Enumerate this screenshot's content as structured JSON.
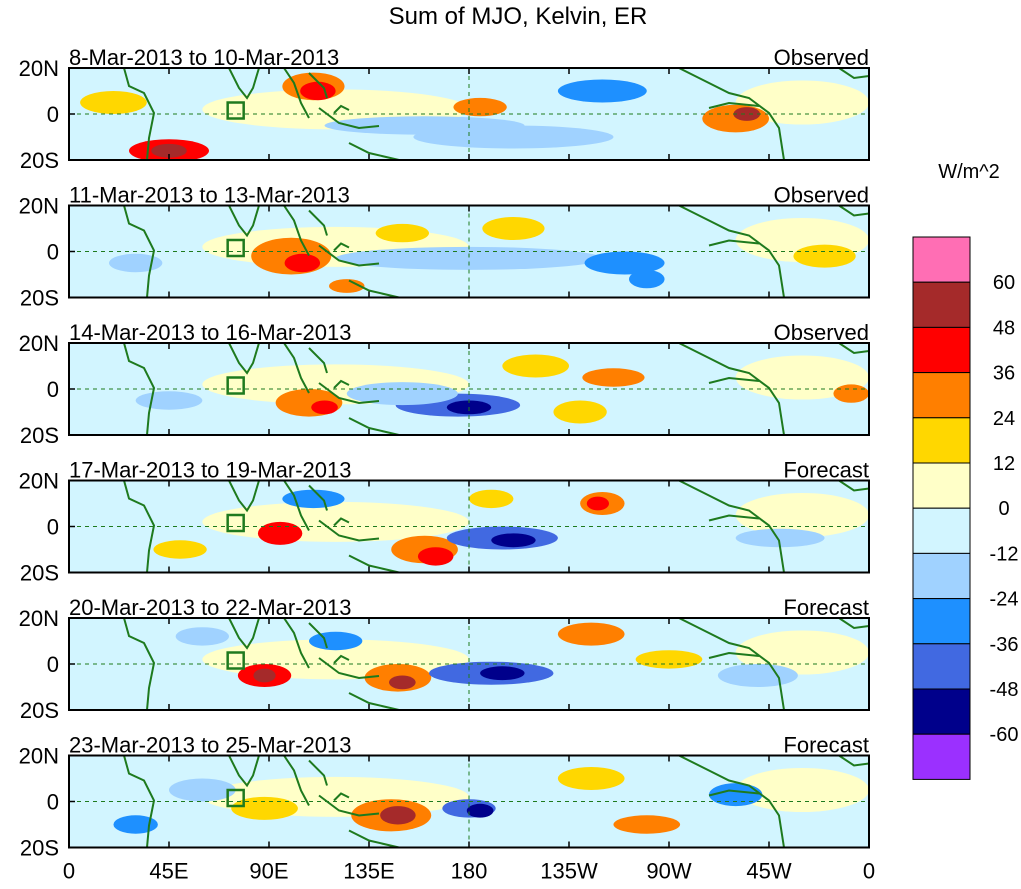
{
  "title": "Sum of MJO, Kelvin, ER",
  "colorbar": {
    "units": "W/m^2",
    "colors": [
      "#ff6eb4",
      "#a52a2a",
      "#ff0000",
      "#ff7f00",
      "#ffd700",
      "#ffffc8",
      "#d2f5ff",
      "#a0d2ff",
      "#1e90ff",
      "#4169e1",
      "#00008b",
      "#9b30ff"
    ],
    "tick_labels": [
      "60",
      "48",
      "36",
      "24",
      "12",
      "0",
      "-12",
      "-24",
      "-36",
      "-48",
      "-60"
    ]
  },
  "axes": {
    "lat_labels": [
      "20N",
      "0",
      "20S"
    ],
    "lon_labels": [
      "0",
      "45E",
      "90E",
      "135E",
      "180",
      "135W",
      "90W",
      "45W",
      "0"
    ],
    "lon_values": [
      0,
      45,
      90,
      135,
      180,
      225,
      270,
      315,
      360
    ],
    "lat_range": [
      -20,
      20
    ],
    "lon_range": [
      0,
      360
    ]
  },
  "panels": [
    {
      "date_range": "8-Mar-2013 to 10-Mar-2013",
      "status": "Observed"
    },
    {
      "date_range": "11-Mar-2013 to 13-Mar-2013",
      "status": "Observed"
    },
    {
      "date_range": "14-Mar-2013 to 16-Mar-2013",
      "status": "Observed"
    },
    {
      "date_range": "17-Mar-2013 to 19-Mar-2013",
      "status": "Forecast"
    },
    {
      "date_range": "20-Mar-2013 to 22-Mar-2013",
      "status": "Forecast"
    },
    {
      "date_range": "23-Mar-2013 to 25-Mar-2013",
      "status": "Forecast"
    }
  ],
  "colors": {
    "land_outline": "#1e7a1e",
    "marker_box": "#1e7a1e",
    "reference_line": "#1e7a1e"
  }
}
